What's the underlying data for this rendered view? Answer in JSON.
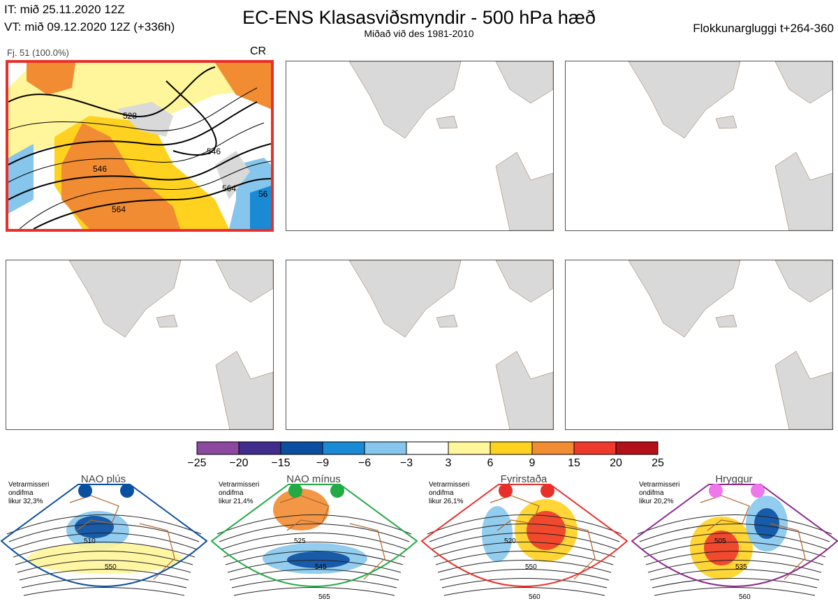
{
  "header": {
    "initial_time": "IT: mið 25.11.2020 12Z",
    "valid_time": "VT: mið 09.12.2020 12Z  (+336h)",
    "title": "EC-ENS Klasasviðsmyndir - 500 hPa hæð",
    "subtitle": "Miðað við des 1981-2010",
    "cluster_window": "Flokkunargluggi t+264-360"
  },
  "member_panel": {
    "label": "Fj. 51 (100.0%)",
    "cluster": "CR",
    "contour_labels": [
      "528",
      "546",
      "546",
      "564",
      "564",
      "56"
    ]
  },
  "colorbar": {
    "ticks": [
      "−25",
      "−20",
      "−15",
      "−9",
      "−6",
      "−3",
      "3",
      "6",
      "9",
      "15",
      "20",
      "25"
    ],
    "colors": [
      "#8b4aa0",
      "#3f2e8c",
      "#0b4fa0",
      "#1a8ad4",
      "#86c6ec",
      "#ffffff",
      "#fff59a",
      "#ffd21f",
      "#f28c32",
      "#ee3a2d",
      "#b3111a"
    ]
  },
  "regimes": [
    {
      "name": "NAO plús",
      "info": "Vetrarmisseri\nondifma\nlikur 32,3%",
      "dot_color": "#0b4fa0",
      "border_color": "#0b4fa0",
      "contours": [
        "510",
        "550"
      ]
    },
    {
      "name": "NAO mínus",
      "info": "Vetrarmisseri\nondifma\nlikur 21,4%",
      "dot_color": "#22aa44",
      "border_color": "#22aa44",
      "contours": [
        "525",
        "545",
        "565"
      ]
    },
    {
      "name": "Fyrirstaða",
      "info": "Vetrarmisseri\nondifma\nlikur 26,1%",
      "dot_color": "#e8302a",
      "border_color": "#e8302a",
      "contours": [
        "520",
        "550",
        "560"
      ]
    },
    {
      "name": "Hryggur",
      "info": "Vetrarmisseri\nondifma\nlikur 20,2%",
      "dot_color": "#ee77ee",
      "border_color": "#8e2a8e",
      "contours": [
        "505",
        "535",
        "560"
      ]
    }
  ]
}
